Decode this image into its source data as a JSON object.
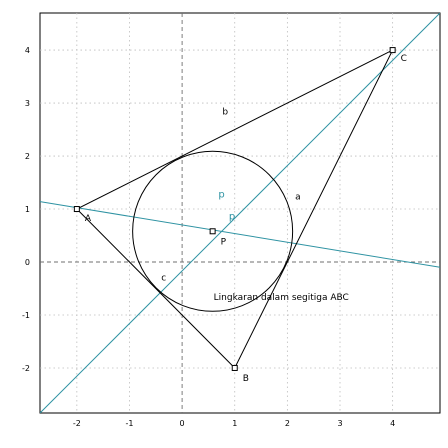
{
  "chart_data": {
    "type": "scatter",
    "xlim": [
      -2.7,
      4.9
    ],
    "ylim": [
      -2.85,
      4.7
    ],
    "grid": true,
    "x_ticks": [
      "-2",
      "-1",
      "0",
      "1",
      "2",
      "3",
      "4"
    ],
    "y_ticks": [
      "4",
      "3",
      "2",
      "1",
      "0",
      "-1",
      "-2"
    ],
    "points": [
      {
        "name": "A",
        "x": -2,
        "y": 1
      },
      {
        "name": "B",
        "x": 1,
        "y": -2
      },
      {
        "name": "C",
        "x": 4,
        "y": 4
      },
      {
        "name": "P",
        "x": 0.58,
        "y": 0.58
      }
    ],
    "segment_labels": [
      {
        "name": "a",
        "x": 2.2,
        "y": 1.18
      },
      {
        "name": "b",
        "x": 0.82,
        "y": 2.78
      },
      {
        "name": "c",
        "x": -0.35,
        "y": -0.35
      }
    ],
    "incircle": {
      "center_x": 0.58,
      "center_y": 0.58,
      "radius": 1.52
    },
    "teal_lines": [
      {
        "name": "p",
        "label_x": 0.75,
        "label_y": 1.22,
        "from": [
          -2.7,
          -2.85
        ],
        "to": [
          4.9,
          4.7
        ]
      },
      {
        "name": "p",
        "label_x": 0.95,
        "label_y": 0.8,
        "from": [
          -2.7,
          1.14
        ],
        "to": [
          4.9,
          -0.1
        ]
      }
    ],
    "caption": "Lingkaran dalam segitiga ABC",
    "caption_pos": {
      "x": 0.6,
      "y": -0.72
    }
  },
  "colors": {
    "triangle": "#000000",
    "teal": "#2f93a3",
    "grid": "#bdbdbd",
    "axes": "#6f6f6f"
  }
}
